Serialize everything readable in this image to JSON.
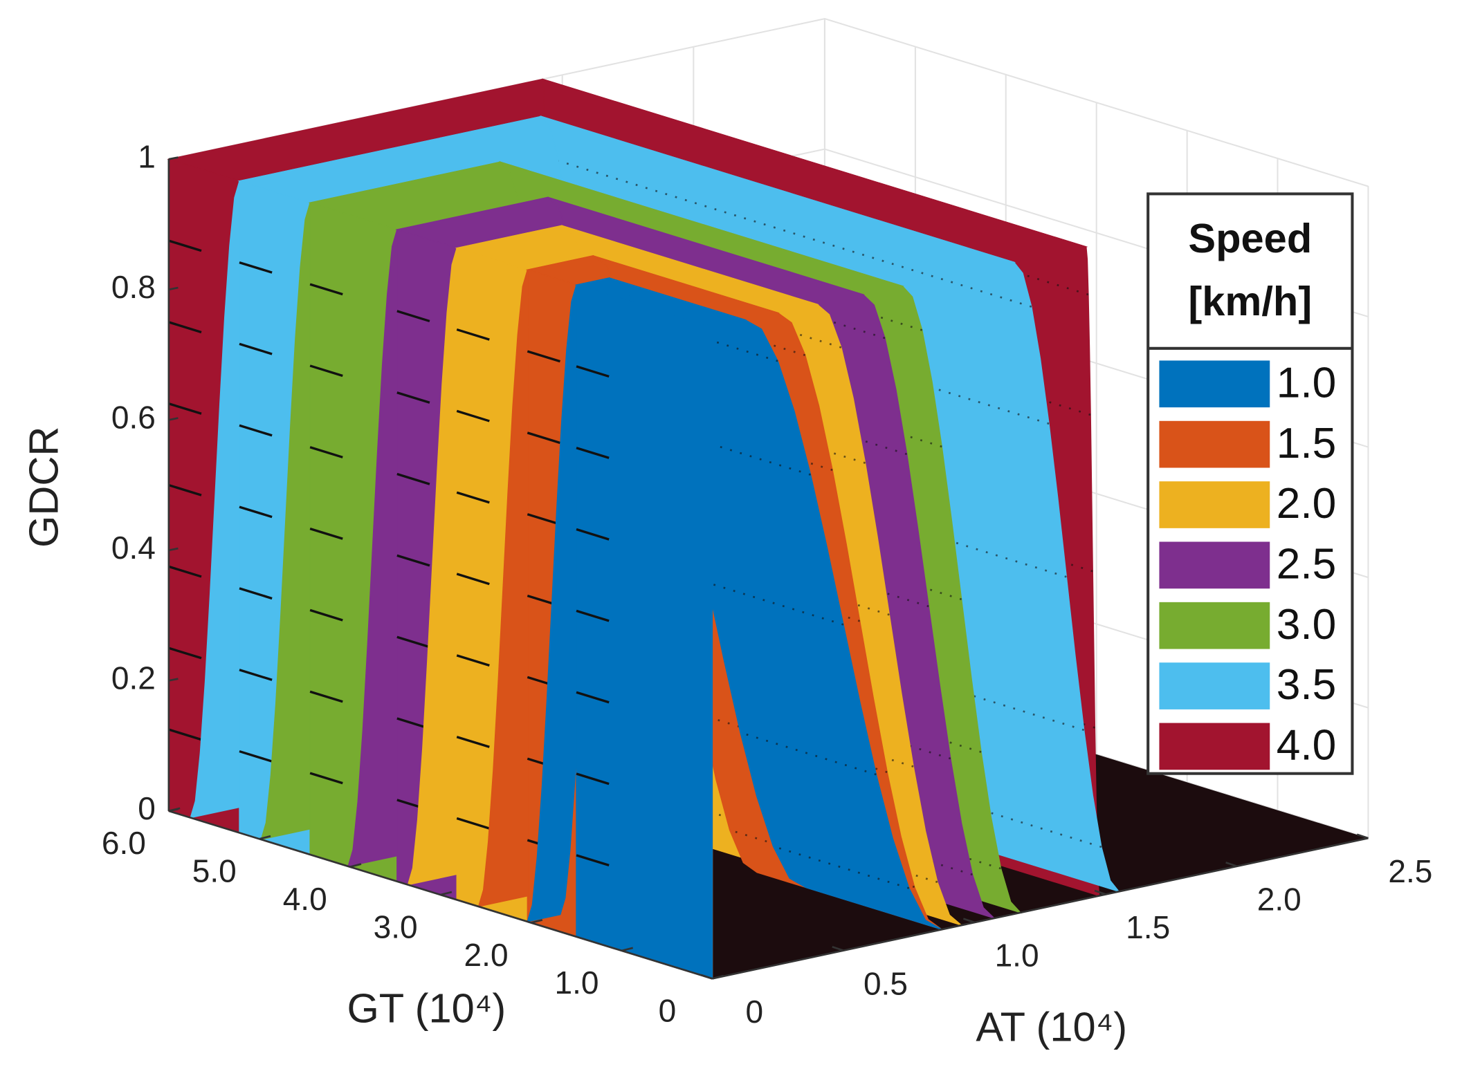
{
  "chart_data": {
    "type": "surface",
    "zlabel": "GDCR",
    "xlabel": "GT (10⁴)",
    "ylabel": "AT (10⁴)",
    "legend_title": [
      "Speed",
      "[km/h]"
    ],
    "legend": "right",
    "grid": true,
    "xlim": [
      0,
      6
    ],
    "xticks": [
      0,
      {
        "value": 1,
        "label": "1.0"
      },
      {
        "value": 2,
        "label": "2.0"
      },
      {
        "value": 3,
        "label": "3.0"
      },
      {
        "value": 4,
        "label": "4.0"
      },
      {
        "value": 5,
        "label": "5.0"
      },
      {
        "value": 6,
        "label": "6.0"
      }
    ],
    "ylim": [
      0,
      2.5
    ],
    "yticks": [
      0,
      0.5,
      {
        "value": 1,
        "label": "1.0"
      },
      1.5,
      {
        "value": 2,
        "label": "2.0"
      },
      2.5
    ],
    "zlim": [
      0,
      1
    ],
    "zticks": [
      0,
      0.2,
      0.4,
      0.6,
      0.8,
      1
    ],
    "series": [
      {
        "name": "1.0",
        "color": "#0072bd"
      },
      {
        "name": "1.5",
        "color": "#d95319"
      },
      {
        "name": "2.0",
        "color": "#edb120"
      },
      {
        "name": "2.5",
        "color": "#7e2f8e"
      },
      {
        "name": "3.0",
        "color": "#77ac30"
      },
      {
        "name": "3.5",
        "color": "#4dbeee"
      },
      {
        "name": "4.0",
        "color": "#a2142f"
      }
    ]
  }
}
